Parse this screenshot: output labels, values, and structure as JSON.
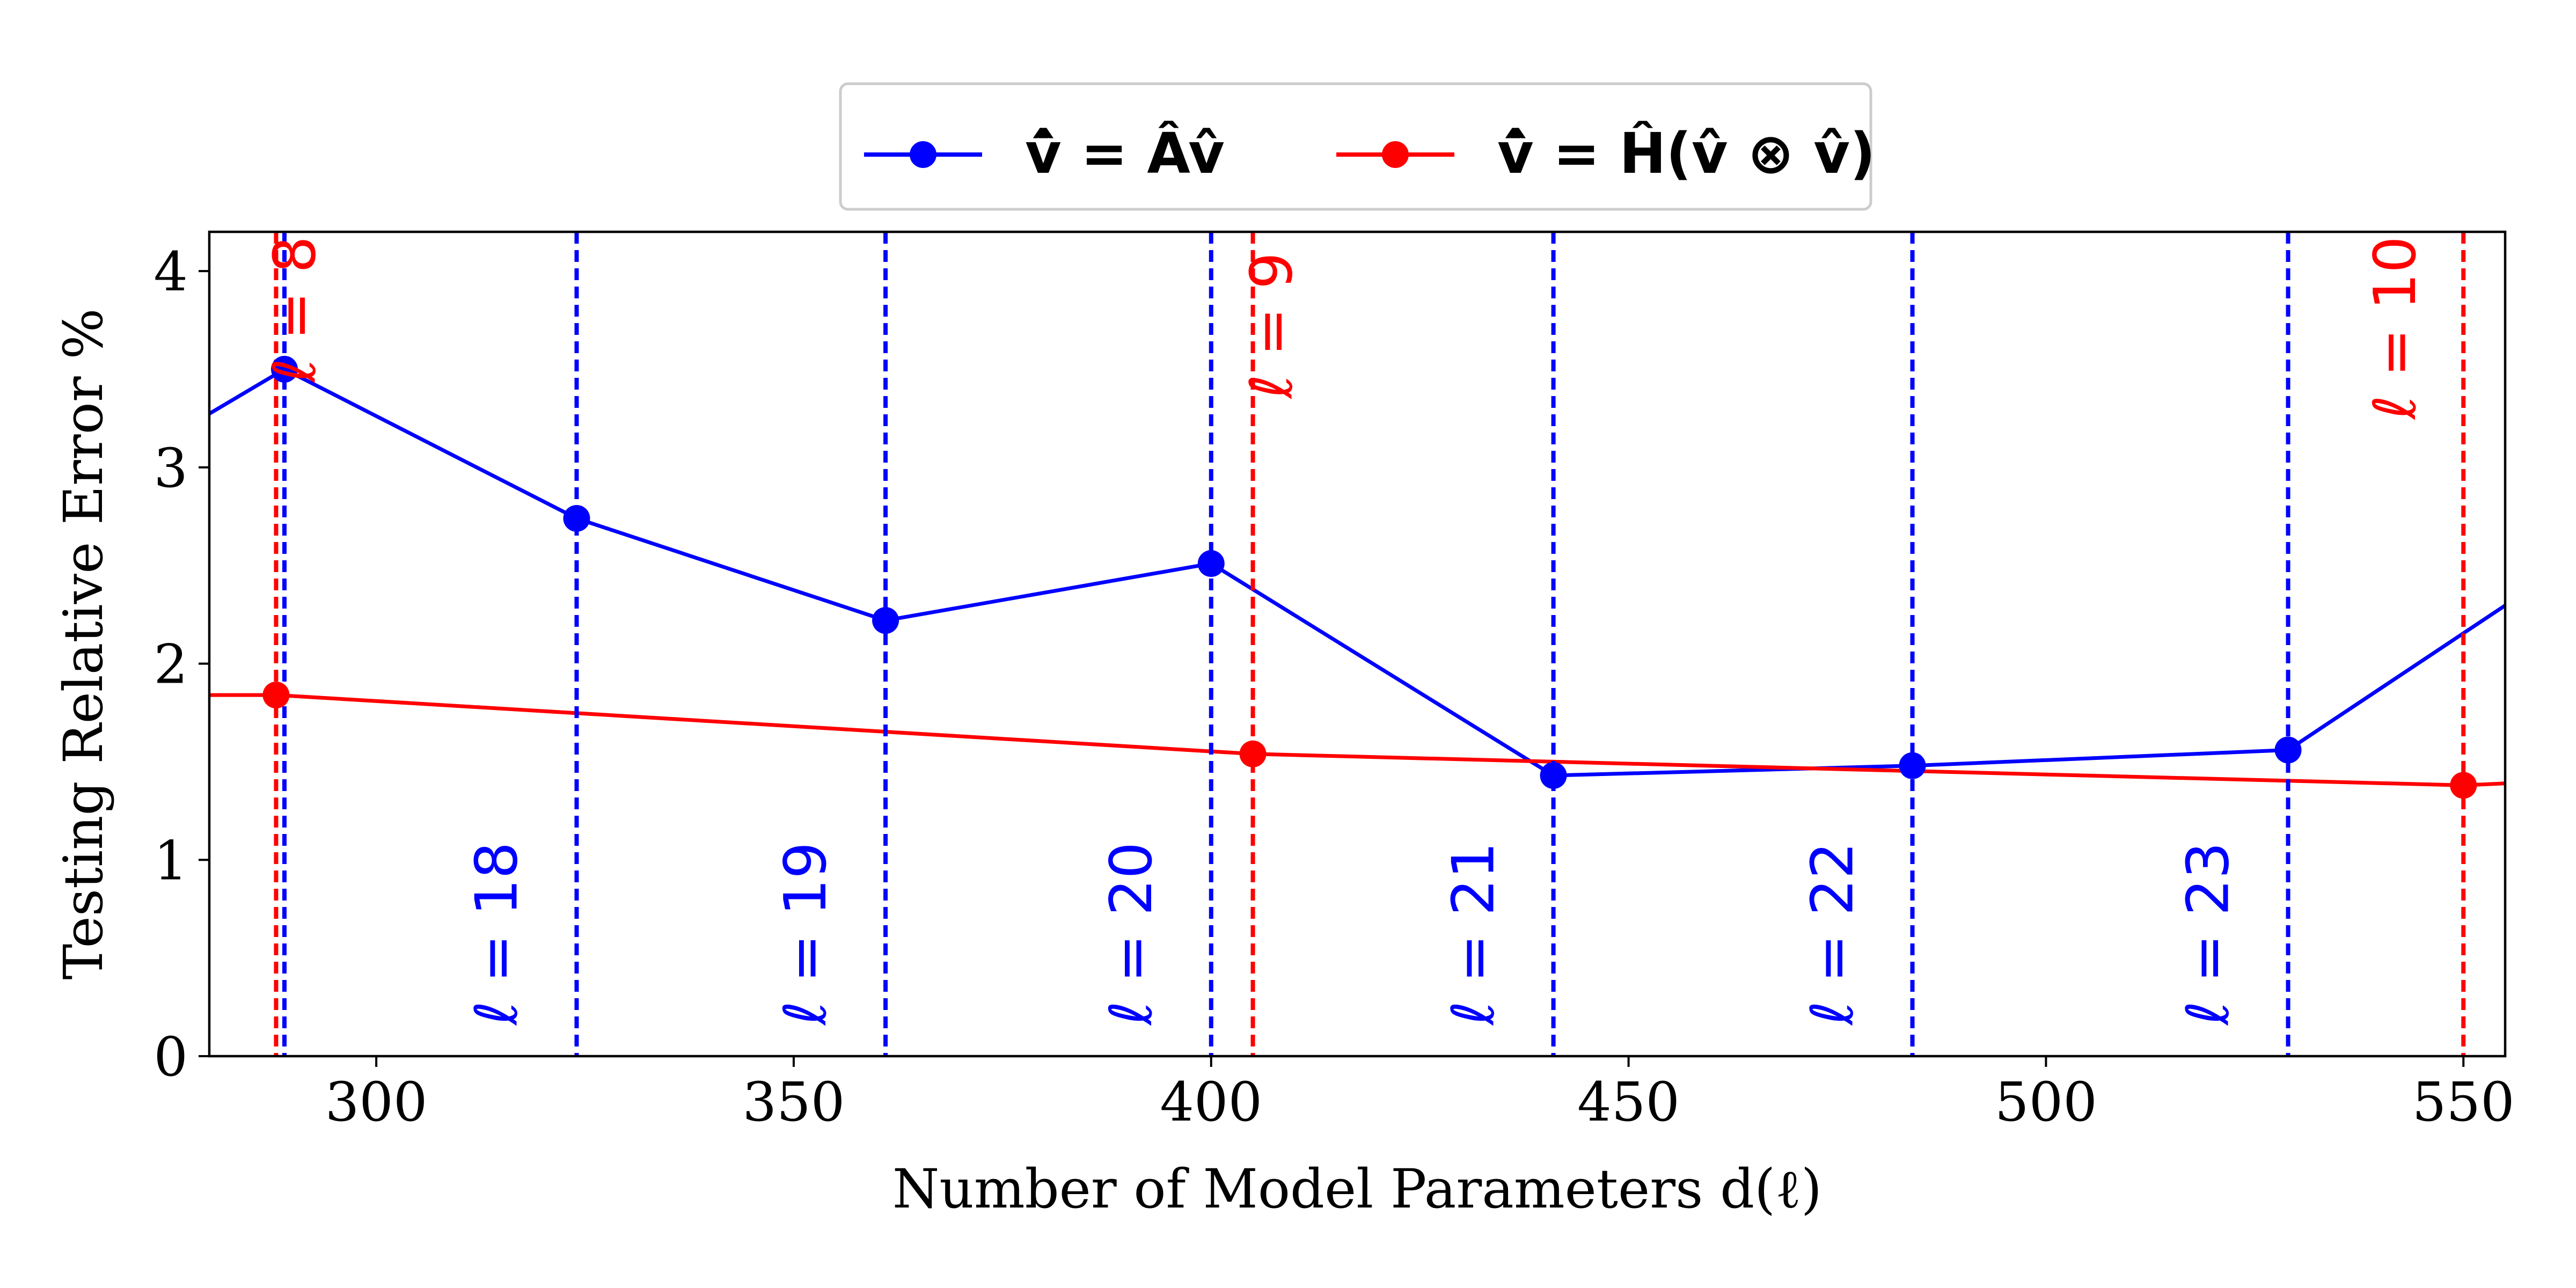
{
  "chart_data": {
    "type": "line",
    "xlabel": "Number of Model Parameters d(ℓ)",
    "ylabel": "Testing Relative Error %",
    "xlim": [
      280,
      555
    ],
    "ylim": [
      0,
      4.2
    ],
    "xticks": [
      300,
      350,
      400,
      450,
      500,
      550
    ],
    "yticks": [
      0,
      1,
      2,
      3,
      4
    ],
    "grid": false,
    "legend_position": "top-center",
    "series": [
      {
        "name": "v̂̇ = Âv̂",
        "color": "#0000ff",
        "extend_left_to": 3.27,
        "extend_right_to": 2.3,
        "points": [
          {
            "x": 289,
            "y": 3.5
          },
          {
            "x": 324,
            "y": 2.74
          },
          {
            "x": 361,
            "y": 2.22
          },
          {
            "x": 400,
            "y": 2.51
          },
          {
            "x": 441,
            "y": 1.43
          },
          {
            "x": 484,
            "y": 1.48
          },
          {
            "x": 529,
            "y": 1.56
          }
        ],
        "vlines": [
          {
            "x": 289,
            "label": ""
          },
          {
            "x": 324,
            "label": "ℓ = 18"
          },
          {
            "x": 361,
            "label": "ℓ = 19"
          },
          {
            "x": 400,
            "label": "ℓ = 20"
          },
          {
            "x": 441,
            "label": "ℓ = 21"
          },
          {
            "x": 484,
            "label": "ℓ = 22"
          },
          {
            "x": 529,
            "label": "ℓ = 23"
          }
        ]
      },
      {
        "name": "v̂̇ = Ĥ(v̂ ⊗ v̂)",
        "color": "#ff0000",
        "extend_left_to": 1.84,
        "extend_right_to": 1.39,
        "points": [
          {
            "x": 288,
            "y": 1.84
          },
          {
            "x": 405,
            "y": 1.54
          },
          {
            "x": 550,
            "y": 1.38
          }
        ],
        "vlines": [
          {
            "x": 288,
            "label": "ℓ = 8"
          },
          {
            "x": 405,
            "label": "ℓ = 9"
          },
          {
            "x": 550,
            "label": "ℓ = 10"
          }
        ]
      }
    ]
  }
}
